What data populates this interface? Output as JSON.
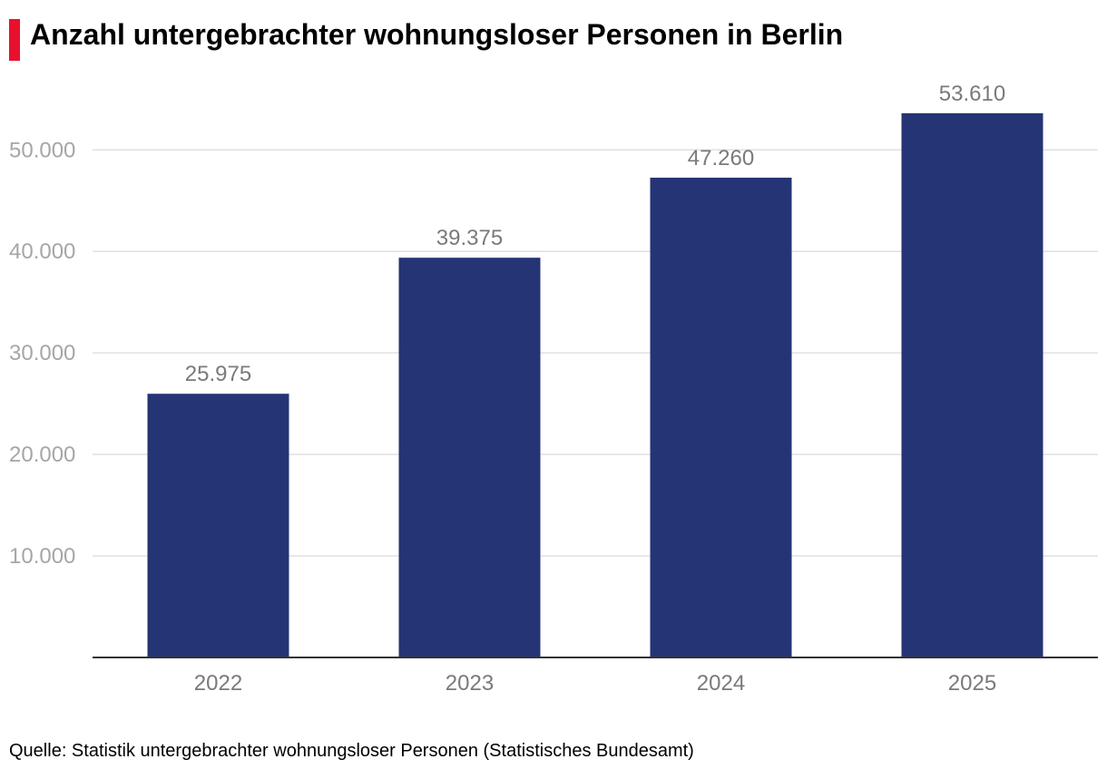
{
  "header": {
    "title": "Anzahl untergebrachter wohnungsloser Personen in Berlin",
    "accent_color": "#e8112d"
  },
  "footer": {
    "source": "Quelle: Statistik untergebrachter wohnungsloser Personen (Statistisches Bundesamt)"
  },
  "chart_data": {
    "type": "bar",
    "title": "Anzahl untergebrachter wohnungsloser Personen in Berlin",
    "categories": [
      "2022",
      "2023",
      "2024",
      "2025"
    ],
    "values": [
      25975,
      39375,
      47260,
      53610
    ],
    "value_labels": [
      "25.975",
      "39.375",
      "47.260",
      "53.610"
    ],
    "yticks": [
      10000,
      20000,
      30000,
      40000,
      50000
    ],
    "ytick_labels": [
      "10.000",
      "20.000",
      "30.000",
      "40.000",
      "50.000"
    ],
    "ylim": [
      0,
      55000
    ],
    "xlabel": "",
    "ylabel": "",
    "grid": true,
    "legend": "none",
    "bar_color": "#253475",
    "grid_color": "#e0e0e0",
    "axis_color": "#333333"
  }
}
